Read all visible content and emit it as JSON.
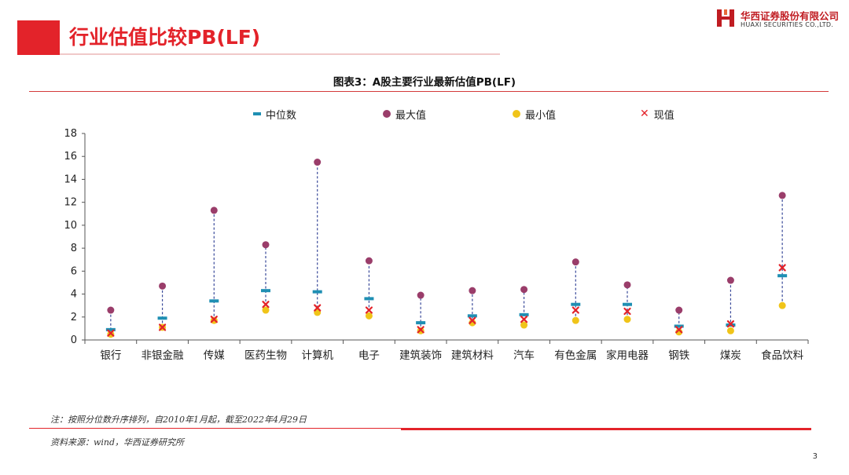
{
  "header": {
    "title": "行业估值比较PB(LF)",
    "logo_cn": "华西证券股份有限公司",
    "logo_en": "HUAXI SECURITIES CO.,LTD."
  },
  "figure": {
    "title": "图表3：A股主要行业最新估值PB(LF)"
  },
  "legend": [
    {
      "key": "median",
      "label": "中位数"
    },
    {
      "key": "max",
      "label": "最大值"
    },
    {
      "key": "min",
      "label": "最小值"
    },
    {
      "key": "current",
      "label": "现值"
    }
  ],
  "colors": {
    "accent": "#e3232a",
    "median": "#1f8fb3",
    "max": "#9a3d6a",
    "min": "#f0c419",
    "current": "#e3232a",
    "range_line": "#3a4a9a"
  },
  "chart_data": {
    "type": "scatter",
    "title": "图表3：A股主要行业最新估值PB(LF)",
    "xlabel": "",
    "ylabel": "",
    "ylim": [
      0,
      18
    ],
    "yticks": [
      0,
      2,
      4,
      6,
      8,
      10,
      12,
      14,
      16,
      18
    ],
    "grid": false,
    "legend_position": "top",
    "categories": [
      "银行",
      "非银金融",
      "传媒",
      "医药生物",
      "计算机",
      "电子",
      "建筑装饰",
      "建筑材料",
      "汽车",
      "有色金属",
      "家用电器",
      "钢铁",
      "煤炭",
      "食品饮料"
    ],
    "series": [
      {
        "name": "中位数",
        "values": [
          0.9,
          1.9,
          3.4,
          4.3,
          4.2,
          3.6,
          1.5,
          2.1,
          2.2,
          3.1,
          3.1,
          1.2,
          1.3,
          5.6
        ]
      },
      {
        "name": "最大值",
        "values": [
          2.6,
          4.7,
          11.3,
          8.3,
          15.5,
          6.9,
          3.9,
          4.3,
          4.4,
          6.8,
          4.8,
          2.6,
          5.2,
          12.6
        ]
      },
      {
        "name": "最小值",
        "values": [
          0.5,
          1.1,
          1.7,
          2.6,
          2.4,
          2.1,
          0.8,
          1.5,
          1.3,
          1.7,
          1.8,
          0.7,
          0.8,
          3.0
        ]
      },
      {
        "name": "现值",
        "values": [
          0.6,
          1.1,
          1.8,
          3.1,
          2.8,
          2.6,
          0.9,
          1.7,
          1.8,
          2.6,
          2.5,
          0.9,
          1.4,
          6.3
        ]
      }
    ]
  },
  "footer": {
    "note": "注：按照分位数升序排列，自2010年1月起，截至2022年4月29日",
    "source": "资料来源：wind，华西证券研究所",
    "page": "3"
  }
}
